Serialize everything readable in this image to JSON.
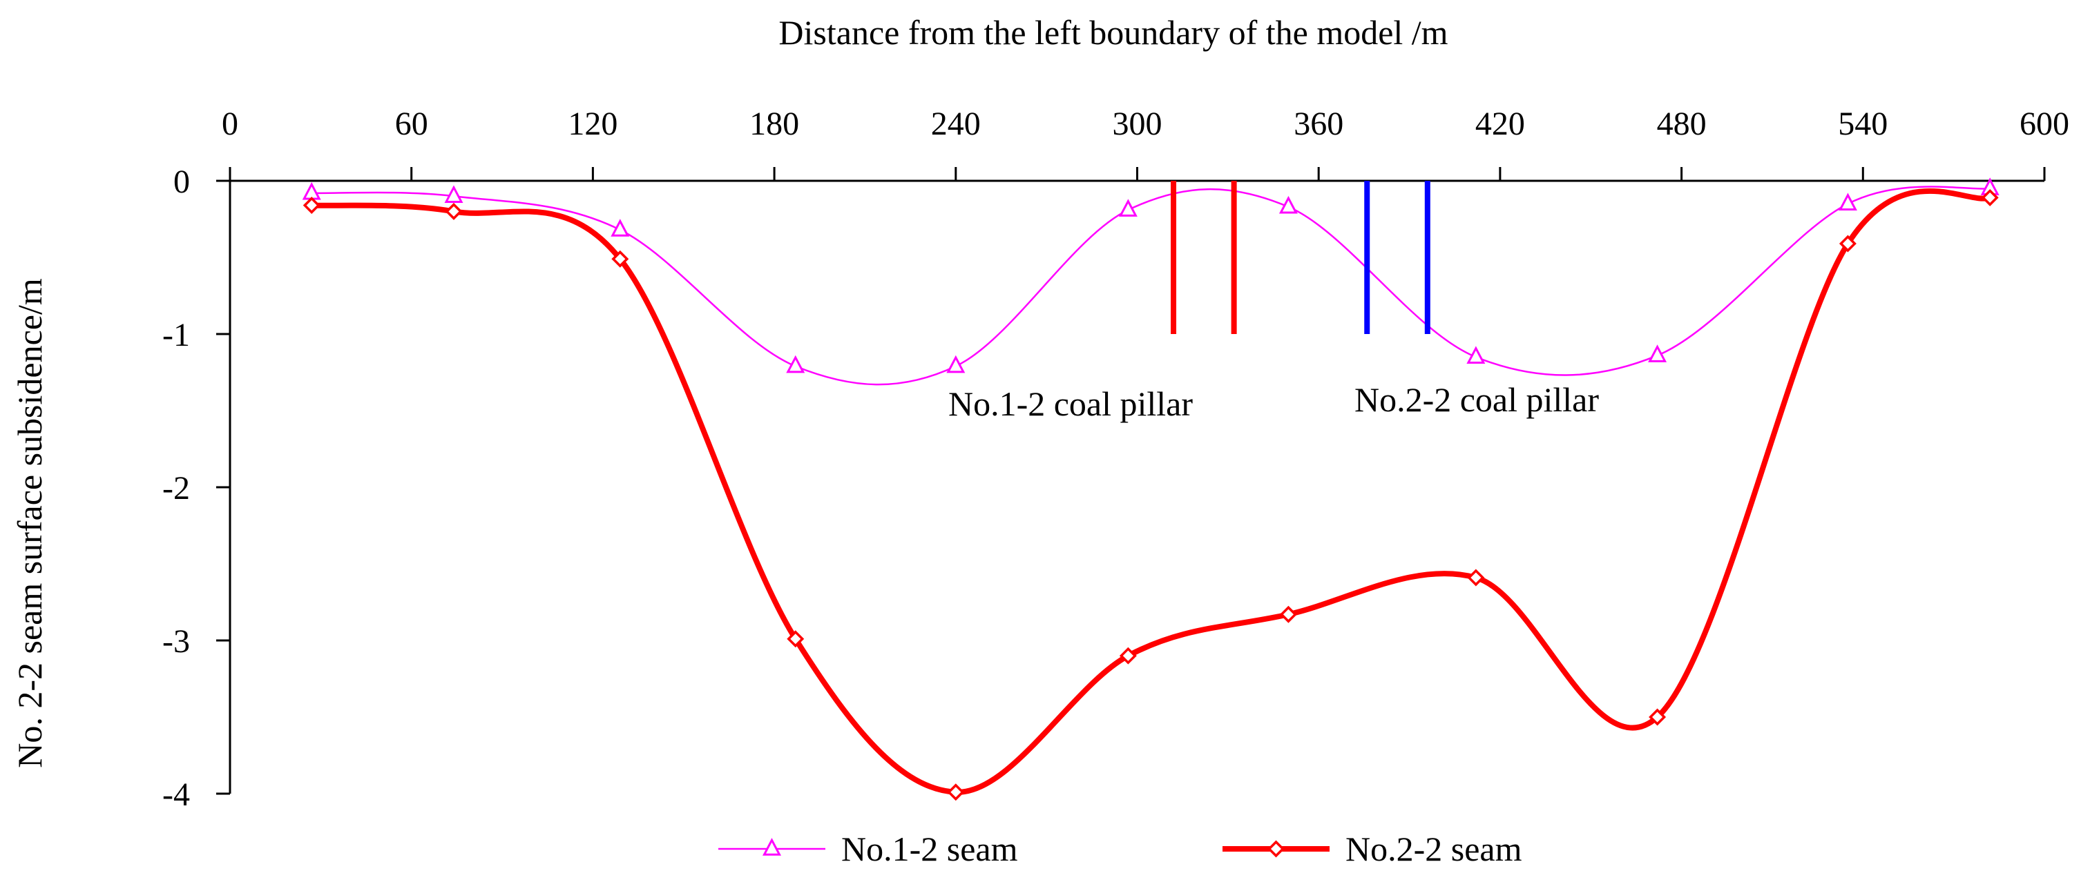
{
  "chart_data": {
    "type": "line",
    "title": "",
    "xlabel": "Distance from the left boundary of the model /m",
    "ylabel": "No. 2-2 seam surface subsidence/m",
    "xlim": [
      0,
      600
    ],
    "ylim": [
      -4,
      0
    ],
    "xticks": [
      0,
      60,
      120,
      180,
      240,
      300,
      360,
      420,
      480,
      540,
      600
    ],
    "xtick_labels": [
      "0",
      "60",
      "120",
      "180",
      "240",
      "300",
      "360",
      "420",
      "480",
      "540",
      "600"
    ],
    "yticks": [
      0,
      -1,
      -2,
      -3,
      -4
    ],
    "ytick_labels": [
      "0",
      "-1",
      "-2",
      "-3",
      "-4"
    ],
    "grid": false,
    "legend_position": "bottom",
    "series": [
      {
        "name": "No.1-2 seam",
        "color": "#ff00ff",
        "marker": "triangle",
        "x": [
          27,
          74,
          129,
          187,
          240,
          297,
          350,
          412,
          472,
          535,
          582
        ],
        "values": [
          -0.08,
          -0.1,
          -0.32,
          -1.21,
          -1.21,
          -0.19,
          -0.17,
          -1.15,
          -1.14,
          -0.15,
          -0.05
        ]
      },
      {
        "name": "No.2-2 seam",
        "color": "#ff0000",
        "marker": "diamond",
        "x": [
          27,
          74,
          129,
          187,
          240,
          297,
          350,
          412,
          472,
          535,
          582
        ],
        "values": [
          -0.16,
          -0.2,
          -0.51,
          -2.99,
          -3.99,
          -3.1,
          -2.83,
          -2.59,
          -3.5,
          -0.41,
          -0.11
        ]
      }
    ],
    "annotations": [
      {
        "id": "pillar-1-2",
        "text": "No.1-2 coal pillar",
        "color": "#ff0000",
        "x_range": [
          312,
          332
        ],
        "y_bottom": -1
      },
      {
        "id": "pillar-2-2",
        "text": "No.2-2 coal pillar",
        "color": "#0000ff",
        "x_range": [
          376,
          396
        ],
        "y_bottom": -1
      }
    ]
  }
}
